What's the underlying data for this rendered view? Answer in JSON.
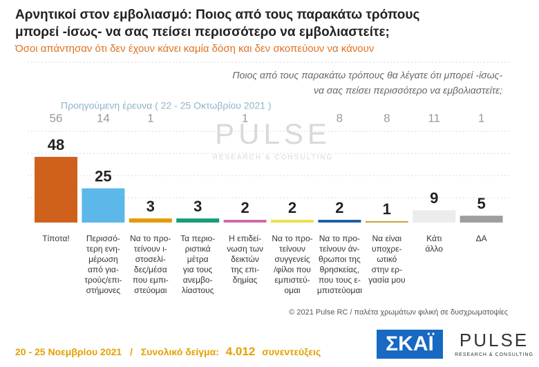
{
  "chart_data": {
    "type": "bar",
    "title": [
      "Αρνητικοί στον εμβολιασμό: Ποιος από τους παρακάτω τρόπους",
      "μπορεί -ίσως- να σας πείσει περισσότερο να εμβολιαστείτε;"
    ],
    "subtitle": "Όσοι απάντησαν ότι δεν έχουν κάνει καμία δόση και δεν σκοπεύουν να κάνουν",
    "question": [
      "Ποιος από τους παρακάτω τρόπους θα λέγατε ότι μπορεί -ίσως-",
      "να σας πείσει περισσότερο να εμβολιαστείτε;"
    ],
    "categories": [
      [
        "Τίποτα!"
      ],
      [
        "Περισσό-",
        "τερη ενη-",
        "μέρωση",
        "από για-",
        "τρούς/επι-",
        "στήμονες"
      ],
      [
        "Να το προ-",
        "τείνουν ι-",
        "στοσελί-",
        "δες/μέσα",
        "που εμπι-",
        "στεύομαι"
      ],
      [
        "Τα περιο-",
        "ριστικά",
        "μέτρα",
        "για τους",
        "ανεμβο-",
        "λίαστους"
      ],
      [
        "Η επιδεί-",
        "νωση των",
        "δεικτών",
        "της επι-",
        "δημίας"
      ],
      [
        "Να το προ-",
        "τείνουν",
        "συγγενείς",
        "/φίλοι που",
        "εμπιστεύ-",
        "ομαι"
      ],
      [
        "Να το προ-",
        "τείνουν άν-",
        "θρωποι της",
        "θρησκείας,",
        "που τους ε-",
        "μπιστεύομαι"
      ],
      [
        "Να είναι",
        "υποχρε-",
        "ωτικό",
        "στην ερ-",
        "γασία μου"
      ],
      [
        "Κάτι",
        "άλλο"
      ],
      [
        "ΔΑ"
      ]
    ],
    "values": [
      48,
      25,
      3,
      3,
      2,
      2,
      2,
      1,
      9,
      5
    ],
    "colors": [
      "#d0611c",
      "#5cb8e8",
      "#e39a0b",
      "#1a9c78",
      "#d26aa6",
      "#ede04a",
      "#1f5ea6",
      "#c9a23c",
      "#ececec",
      "#9e9e9e"
    ],
    "previous_label": "Προηγούμενη έρευνα  ( 22 - 25 Οκτωβρίου 2021 )",
    "previous_values": [
      56,
      14,
      1,
      null,
      1,
      null,
      8,
      8,
      11,
      1
    ],
    "watermark": {
      "name": "PULSE",
      "tagline": "RESEARCH & CONSULTING"
    },
    "credit": "© 2021 Pulse RC  /  παλέτα χρωμάτων φιλική σε δυσχρωματοψίες",
    "footer": {
      "date": "20 - 25  Νοεμβρίου 2021",
      "separator": "/",
      "sample_label": "Συνολικό δείγμα:",
      "sample_size": "4.012",
      "sample_unit": "συνεντεύξεις"
    },
    "logos": {
      "broadcaster": "ΣΚΑΪ",
      "pollster": "PULSE",
      "pollster_tagline": "RESEARCH & CONSULTING"
    }
  }
}
